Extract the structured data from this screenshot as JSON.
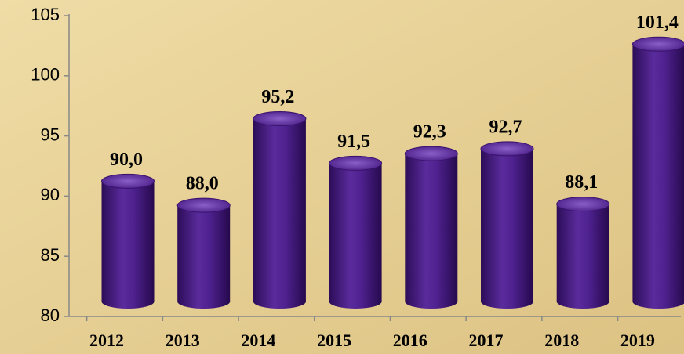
{
  "chart_data": {
    "type": "bar",
    "categories": [
      "2012",
      "2013",
      "2014",
      "2015",
      "2016",
      "2017",
      "2018",
      "2019"
    ],
    "values": [
      90.0,
      88.0,
      95.2,
      91.5,
      92.3,
      92.7,
      88.1,
      101.4
    ],
    "value_labels": [
      "90,0",
      "88,0",
      "95,2",
      "91,5",
      "92,3",
      "92,7",
      "88,1",
      "101,4"
    ],
    "color": "#4a1d86",
    "ylim": [
      80,
      105
    ],
    "yticks": [
      80,
      85,
      90,
      95,
      100,
      105
    ],
    "grid": false
  }
}
